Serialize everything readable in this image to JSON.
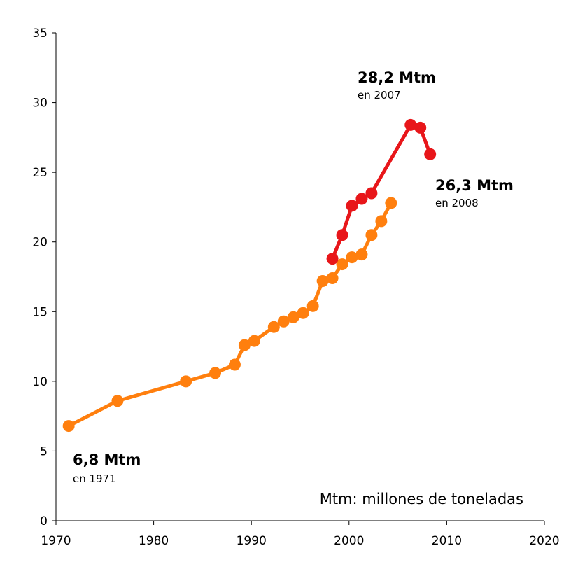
{
  "chart_data": {
    "type": "line",
    "title": "",
    "xlabel": "",
    "ylabel": "",
    "xlim": [
      1970,
      2020
    ],
    "ylim": [
      0,
      35
    ],
    "x_ticks": [
      1970,
      1980,
      1990,
      2000,
      2010,
      2020
    ],
    "y_ticks": [
      0,
      5,
      10,
      15,
      20,
      25,
      30,
      35
    ],
    "grid": false,
    "series": [
      {
        "color": "#ff7f0e",
        "points": [
          {
            "x": 1971.3,
            "y": 6.8
          },
          {
            "x": 1976.3,
            "y": 8.6
          },
          {
            "x": 1983.3,
            "y": 10.0
          },
          {
            "x": 1986.3,
            "y": 10.6
          },
          {
            "x": 1988.3,
            "y": 11.2
          },
          {
            "x": 1989.3,
            "y": 12.6
          },
          {
            "x": 1990.3,
            "y": 12.9
          },
          {
            "x": 1992.3,
            "y": 13.9
          },
          {
            "x": 1993.3,
            "y": 14.3
          },
          {
            "x": 1994.3,
            "y": 14.6
          },
          {
            "x": 1995.3,
            "y": 14.9
          },
          {
            "x": 1996.3,
            "y": 15.4
          },
          {
            "x": 1997.3,
            "y": 17.2
          },
          {
            "x": 1998.3,
            "y": 17.4
          },
          {
            "x": 1999.3,
            "y": 18.4
          },
          {
            "x": 2000.3,
            "y": 18.9
          },
          {
            "x": 2001.3,
            "y": 19.1
          },
          {
            "x": 2002.3,
            "y": 20.5
          },
          {
            "x": 2003.3,
            "y": 21.5
          },
          {
            "x": 2004.3,
            "y": 22.8
          }
        ]
      },
      {
        "color": "#e8161a",
        "points": [
          {
            "x": 1998.3,
            "y": 18.8
          },
          {
            "x": 1999.3,
            "y": 20.5
          },
          {
            "x": 2000.3,
            "y": 22.6
          },
          {
            "x": 2001.3,
            "y": 23.1
          },
          {
            "x": 2002.3,
            "y": 23.5
          },
          {
            "x": 2006.3,
            "y": 28.4
          },
          {
            "x": 2007.3,
            "y": 28.2
          },
          {
            "x": 2008.3,
            "y": 26.3
          }
        ]
      }
    ],
    "annotations": [
      {
        "value": "6,8 Mtm",
        "sub": "en 1971",
        "color": "#000000"
      },
      {
        "value": "28,2 Mtm",
        "sub": "en 2007",
        "color": "#e8161a"
      },
      {
        "value": "26,3 Mtm",
        "sub": "en 2008",
        "color": "#e8161a"
      }
    ],
    "note": "Mtm: millones de toneladas"
  }
}
